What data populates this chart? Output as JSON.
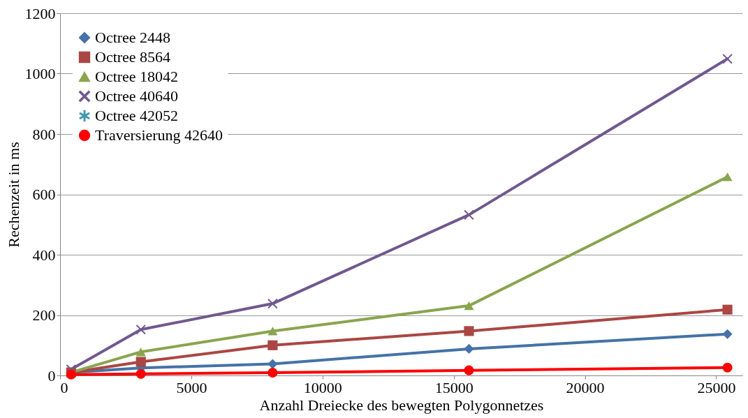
{
  "chart_data": {
    "type": "line",
    "xlabel": "Anzahl Dreiecke des bewegten Polygonnetzes",
    "ylabel": "Rechenzeit in ms",
    "x": [
      420,
      3080,
      8100,
      15580,
      25430
    ],
    "xlim": [
      0,
      26000
    ],
    "xticks": [
      0,
      5000,
      10000,
      15000,
      20000,
      25000
    ],
    "ylim": [
      0,
      1200
    ],
    "yticks": [
      0,
      200,
      400,
      600,
      800,
      1000,
      1200
    ],
    "grid": "y",
    "legend": "top left",
    "line_style": "solid",
    "series": [
      {
        "name": "Octree 2448",
        "color": "#4572a7",
        "marker": "diamond",
        "values": [
          10,
          25,
          38,
          88,
          137
        ]
      },
      {
        "name": "Octree 8564",
        "color": "#aa4643",
        "marker": "square",
        "values": [
          10,
          45,
          100,
          147,
          218
        ]
      },
      {
        "name": "Octree 18042",
        "color": "#89a54e",
        "marker": "triangle",
        "values": [
          10,
          78,
          147,
          231,
          658
        ]
      },
      {
        "name": "Octree 40640",
        "color": "#71588f",
        "marker": "cross",
        "values": [
          20,
          152,
          238,
          532,
          1049
        ]
      },
      {
        "name": "Octree 42052",
        "color": "#4198af",
        "marker": "star",
        "values": [
          null,
          null,
          null,
          null,
          null
        ]
      },
      {
        "name": "Traversierung 42640",
        "color": "#ff0000",
        "marker": "circle",
        "values": [
          3,
          5,
          9,
          17,
          26
        ]
      }
    ]
  }
}
